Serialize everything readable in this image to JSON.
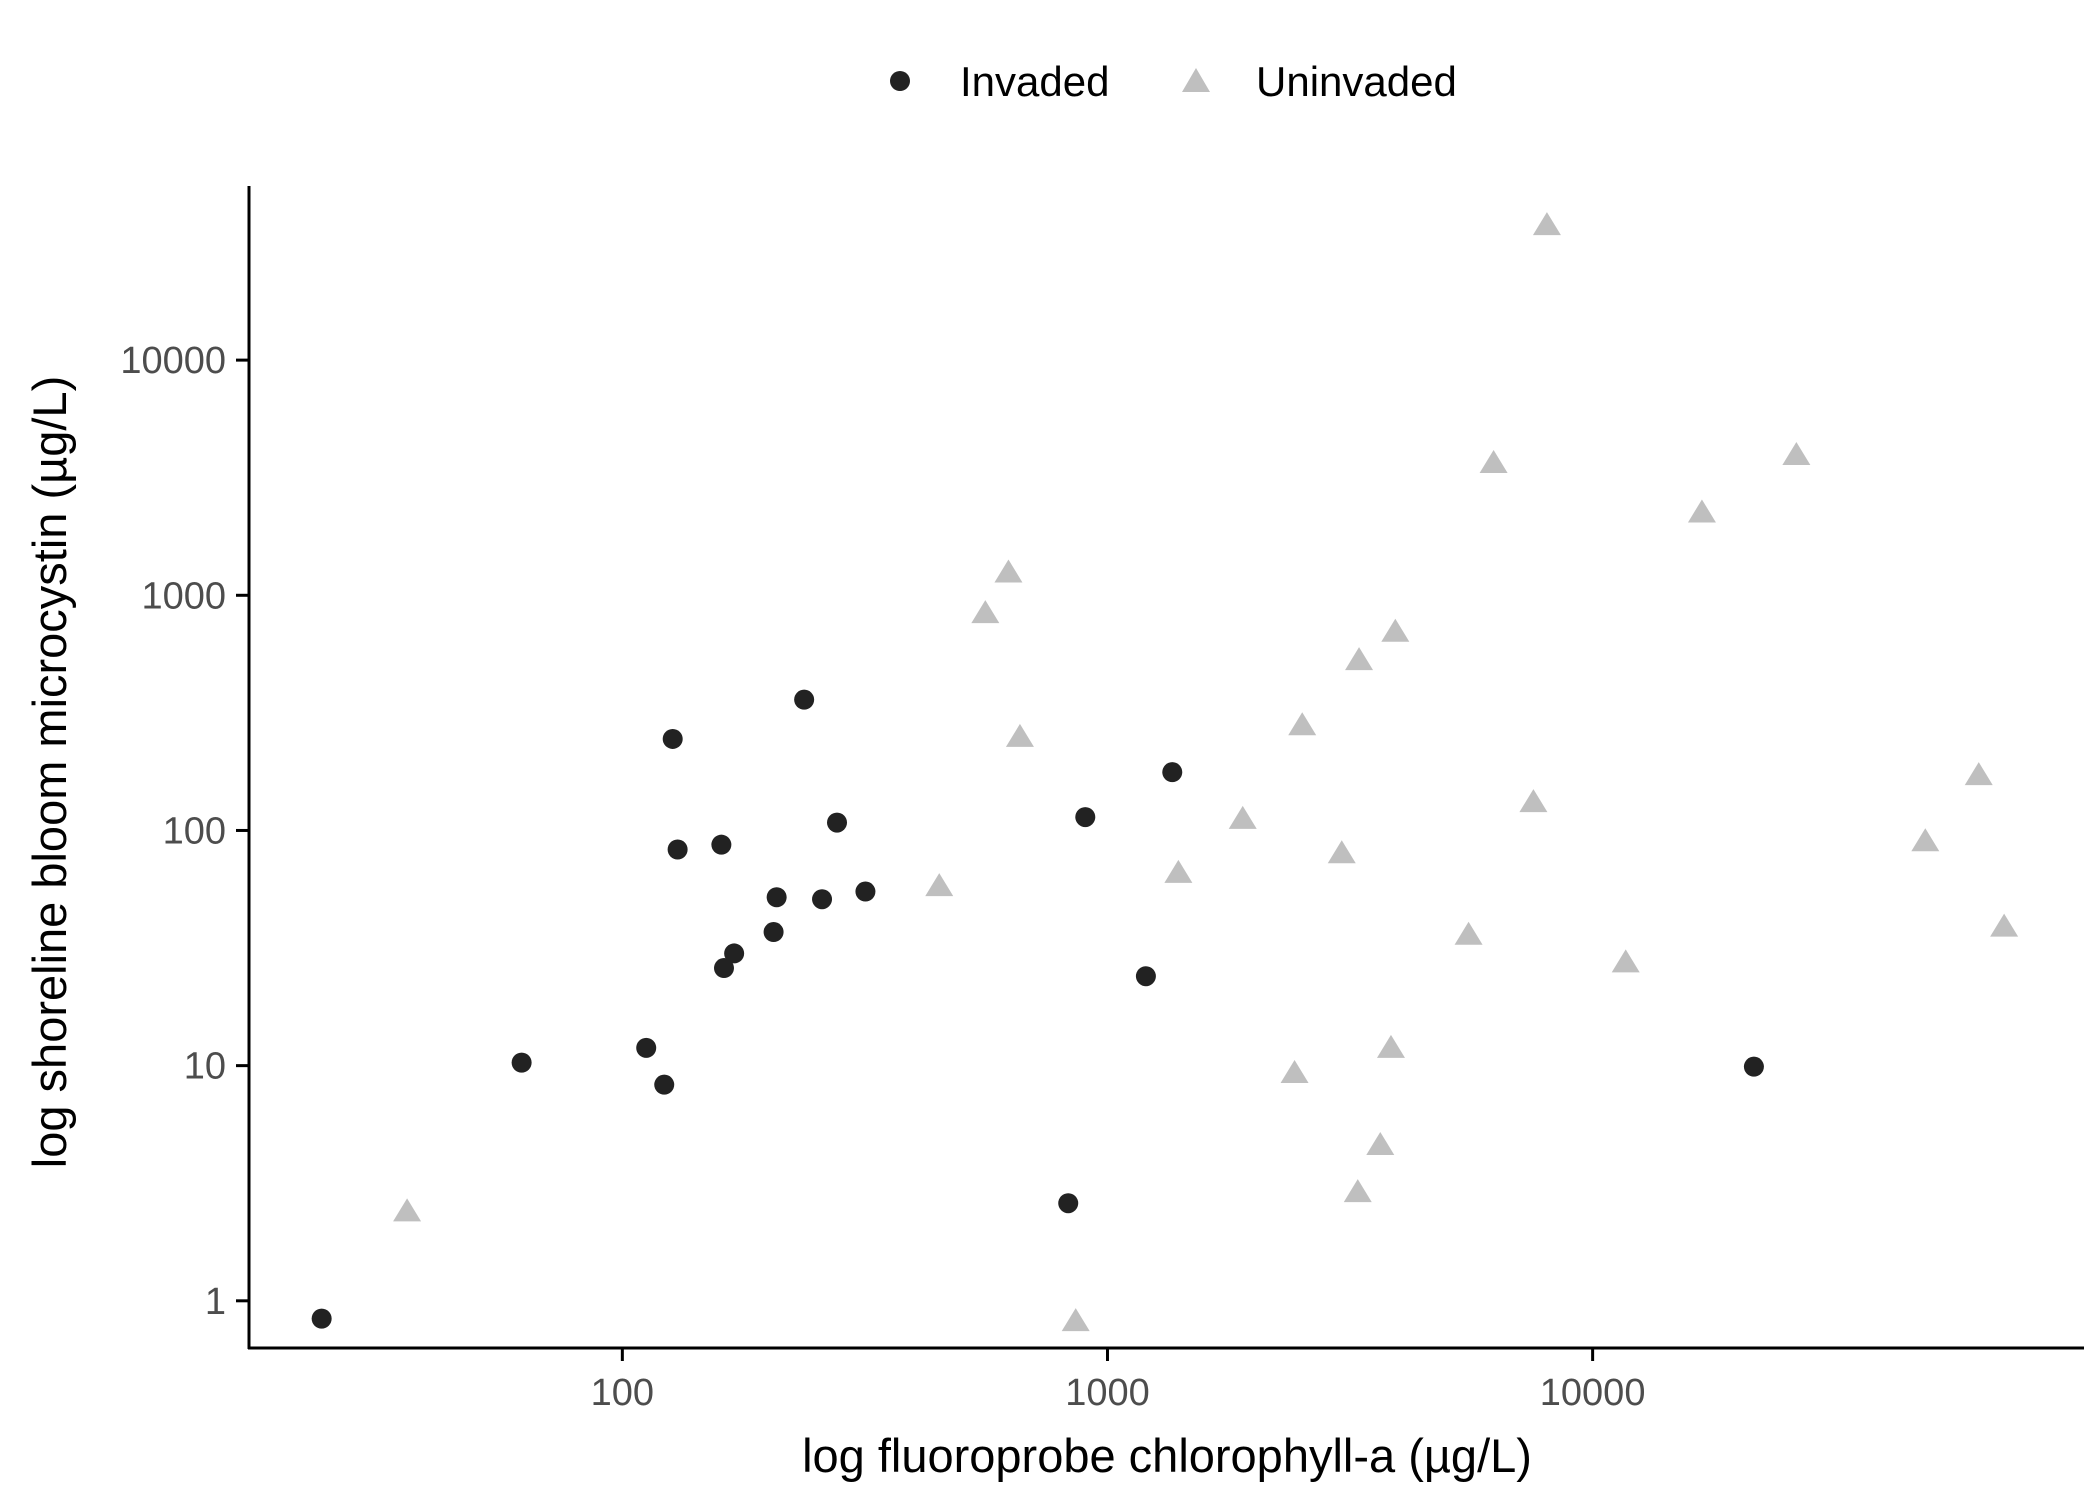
{
  "chart_data": {
    "type": "scatter",
    "x_scale": "log",
    "y_scale": "log",
    "xlabel": "log fluoroprobe chlorophyll-a (µg/L)",
    "ylabel": "log shoreline bloom microcystin (µg/L)",
    "xlim": [
      17,
      103000
    ],
    "ylim": [
      0.63,
      55000
    ],
    "x_ticks": [
      100,
      1000,
      10000
    ],
    "x_tick_labels": [
      "100",
      "1000",
      "10000"
    ],
    "y_ticks": [
      1,
      10,
      100,
      1000,
      10000
    ],
    "y_tick_labels": [
      "1",
      "10",
      "100",
      "1000",
      "10000"
    ],
    "grid": false,
    "legend_position": "top",
    "series": [
      {
        "name": "Invaded",
        "marker": "circle",
        "color": "#222222",
        "points": [
          {
            "x": 24,
            "y": 0.84
          },
          {
            "x": 62,
            "y": 10.3
          },
          {
            "x": 112,
            "y": 11.9
          },
          {
            "x": 122,
            "y": 8.3
          },
          {
            "x": 127,
            "y": 245
          },
          {
            "x": 130,
            "y": 83
          },
          {
            "x": 160,
            "y": 87
          },
          {
            "x": 162,
            "y": 26
          },
          {
            "x": 170,
            "y": 30
          },
          {
            "x": 205,
            "y": 37
          },
          {
            "x": 208,
            "y": 52
          },
          {
            "x": 237,
            "y": 360
          },
          {
            "x": 258,
            "y": 51
          },
          {
            "x": 277,
            "y": 108
          },
          {
            "x": 317,
            "y": 55
          },
          {
            "x": 830,
            "y": 2.6
          },
          {
            "x": 900,
            "y": 114
          },
          {
            "x": 1200,
            "y": 24
          },
          {
            "x": 1360,
            "y": 177
          },
          {
            "x": 21500,
            "y": 9.9
          }
        ]
      },
      {
        "name": "Uninvaded",
        "marker": "triangle",
        "color": "#bfbfbf",
        "points": [
          {
            "x": 36,
            "y": 2.4
          },
          {
            "x": 450,
            "y": 58
          },
          {
            "x": 560,
            "y": 840
          },
          {
            "x": 625,
            "y": 1250
          },
          {
            "x": 660,
            "y": 250
          },
          {
            "x": 860,
            "y": 0.82
          },
          {
            "x": 1400,
            "y": 66
          },
          {
            "x": 1900,
            "y": 112
          },
          {
            "x": 2430,
            "y": 9.3
          },
          {
            "x": 2520,
            "y": 280
          },
          {
            "x": 3040,
            "y": 80
          },
          {
            "x": 3280,
            "y": 2.9
          },
          {
            "x": 3300,
            "y": 530
          },
          {
            "x": 3650,
            "y": 4.6
          },
          {
            "x": 3840,
            "y": 11.9
          },
          {
            "x": 3920,
            "y": 700
          },
          {
            "x": 5550,
            "y": 36
          },
          {
            "x": 6250,
            "y": 3650
          },
          {
            "x": 7550,
            "y": 132
          },
          {
            "x": 8050,
            "y": 37500
          },
          {
            "x": 11700,
            "y": 27.5
          },
          {
            "x": 16800,
            "y": 2250
          },
          {
            "x": 26300,
            "y": 3950
          },
          {
            "x": 48500,
            "y": 90
          },
          {
            "x": 62500,
            "y": 172
          },
          {
            "x": 70500,
            "y": 39
          }
        ]
      }
    ]
  }
}
